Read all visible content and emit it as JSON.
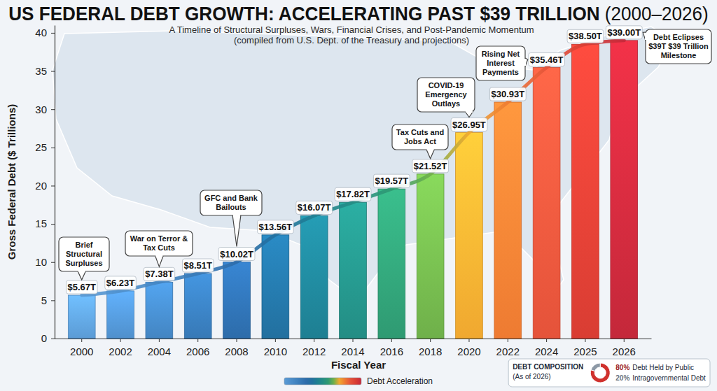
{
  "chart_data": [
    {
      "type": "bar",
      "title": "US FEDERAL DEBT GROWTH: ACCELERATING PAST $39 TRILLION (2000–2026)",
      "subtitle": [
        "A Timeline of Structural Surpluses, Wars, Financial Crises, and Post-Pandemic Momentum",
        "(compiled from U.S. Dept. of the Treasury and projections)"
      ],
      "x_label": "Fiscal Year",
      "y_label": "Gross Federal Debt ($ Trillions)",
      "categories": [
        "2000",
        "2002",
        "2004",
        "2006",
        "2008",
        "2010",
        "2012",
        "2014",
        "2016",
        "2018",
        "2020",
        "2022",
        "2024",
        "2025",
        "2026"
      ],
      "series": [
        {
          "name": "Debt Acceleration",
          "colors": [
            "#5b9bd5",
            "#4f90cc",
            "#4385c2",
            "#3779b6",
            "#2d6caa",
            "#22709f",
            "#1e7f92",
            "#238d84",
            "#2f9a72",
            "#6fb04a",
            "#f0a830",
            "#ee7b32",
            "#e5533a",
            "#d93d33",
            "#c4283a"
          ],
          "values": [
            5.67,
            6.23,
            7.38,
            8.51,
            10.02,
            13.56,
            16.07,
            17.82,
            19.57,
            21.52,
            26.95,
            30.93,
            35.46,
            38.5,
            39.0
          ],
          "value_labels": [
            "$5.67T",
            "$6.23T",
            "$7.38T",
            "$8.51T",
            "$10.02T",
            "$13.56T",
            "$16.07T",
            "$17.82T",
            "$19.57T",
            "$21.52T",
            "$26.95T",
            "$30.93T",
            "$35.46T",
            "$38.50T",
            "$39.00T"
          ]
        }
      ],
      "ylim": [
        0,
        41
      ],
      "yticks": [
        0,
        5,
        10,
        15,
        20,
        25,
        30,
        35,
        40
      ],
      "grid": false,
      "data_labels": true,
      "legend": "bottom",
      "annotations": [
        "Brief Structural Surpluses",
        "War on Terror & Tax Cuts",
        "GFC and Bank Bailouts",
        "Tax Cuts and Jobs Act",
        "COVID-19 Emergency Outlays",
        "Rising Net Interest Payments",
        "Debt Eclipses $39T $39 Trillion Milestone"
      ]
    },
    {
      "type": "donut",
      "title": "DEBT COMPOSITION",
      "subtitle": "(As of 2026)",
      "categories": [
        "Debt Held by Public",
        "Intragovernmental Debt"
      ],
      "values": [
        80,
        20
      ],
      "value_labels": [
        "80%",
        "20%"
      ],
      "colors": [
        "#d0312d",
        "#8d99a6"
      ],
      "data_labels": true,
      "legend": "right"
    }
  ]
}
